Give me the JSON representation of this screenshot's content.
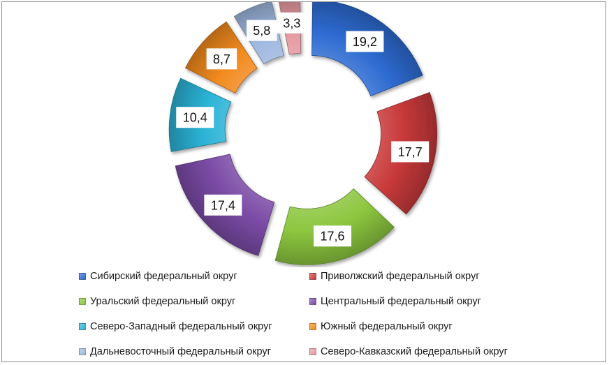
{
  "chart_data": {
    "type": "pie",
    "variant": "exploded-doughnut",
    "title": "",
    "categories": [
      "Сибирский федеральный округ",
      "Приволжский федеральный округ",
      "Уральский федеральный округ",
      "Центральный федеральный округ",
      "Северо-Западный федеральный округ",
      "Южный федеральный округ",
      "Дальневосточный федеральный округ",
      "Северо-Кавказский федеральный округ"
    ],
    "values": [
      19.2,
      17.7,
      17.6,
      17.4,
      10.4,
      8.7,
      5.8,
      3.3
    ],
    "data_labels": [
      "19,2",
      "17,7",
      "17,6",
      "17,4",
      "10,4",
      "8,7",
      "5,8",
      "3,3"
    ],
    "colors": [
      "#2e6bd1",
      "#c8393a",
      "#8cc63f",
      "#7b4ba6",
      "#2bb3d6",
      "#f28a1f",
      "#9fb8df",
      "#e49aa0"
    ],
    "legend_position": "bottom"
  }
}
